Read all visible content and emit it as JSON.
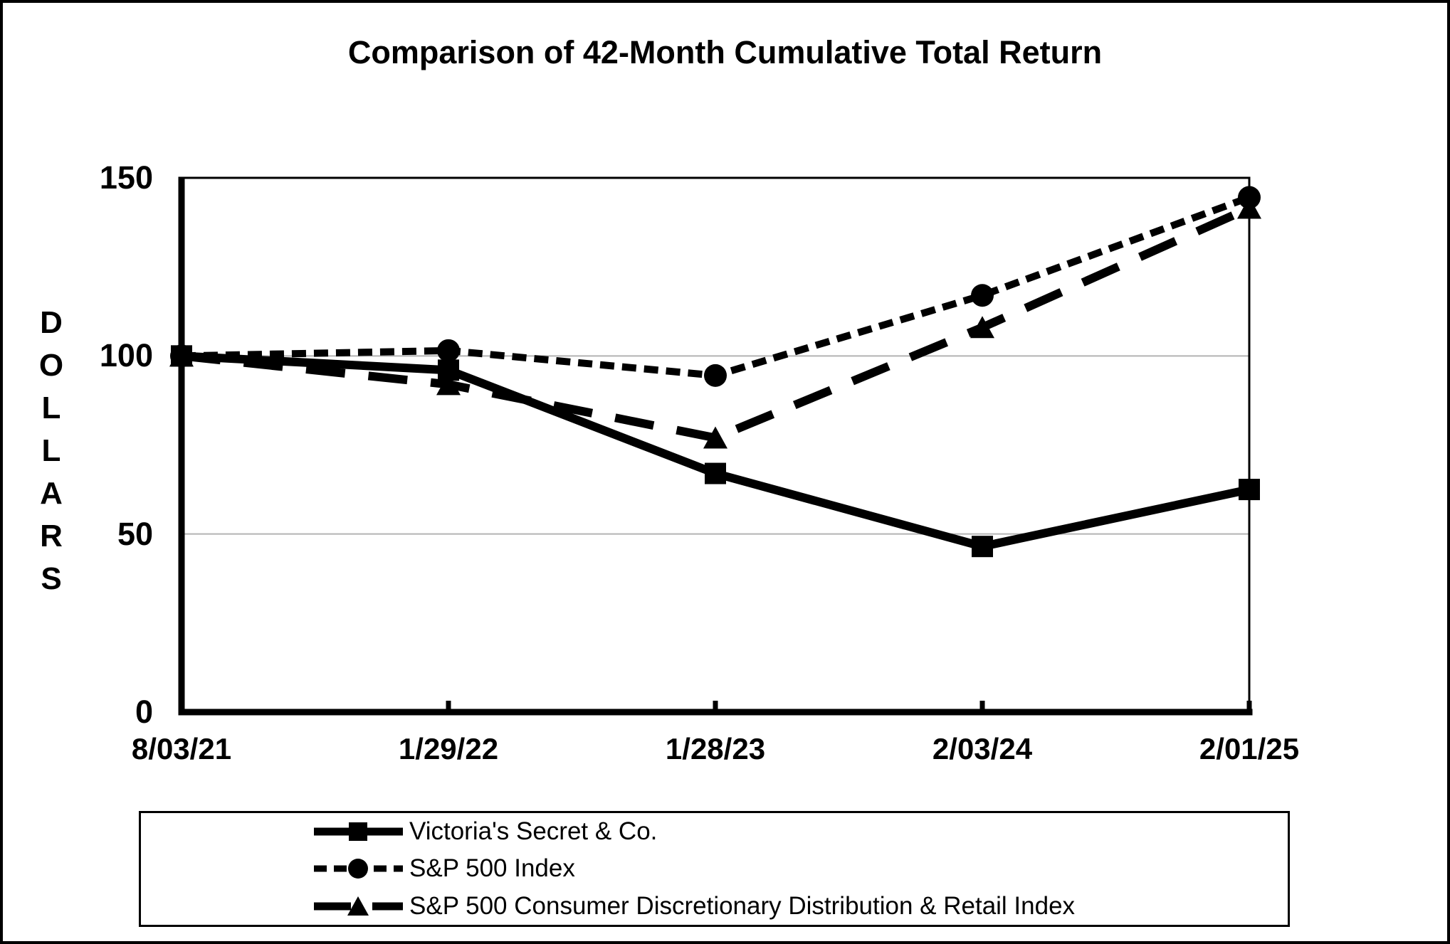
{
  "page": {
    "background": "#ffffff",
    "frame_border_color": "#000000"
  },
  "chart_data": {
    "type": "line",
    "title": "Comparison of 42-Month Cumulative Total Return",
    "ylabel": "DOLLARS",
    "xlabel": "",
    "ylim": [
      0,
      150
    ],
    "yticks": [
      "0",
      "50",
      "100",
      "150"
    ],
    "ytick_values": [
      0,
      50,
      100,
      150
    ],
    "gridlines_at": [
      50,
      100
    ],
    "grid": "horizontal-only",
    "categories": [
      "8/03/21",
      "1/29/22",
      "1/28/23",
      "2/03/24",
      "2/01/25"
    ],
    "series": [
      {
        "name": "Victoria's Secret & Co.",
        "marker": "square",
        "line_style": "solid",
        "values": [
          100,
          96,
          67,
          46.5,
          62.5
        ]
      },
      {
        "name": "S&P 500 Index",
        "marker": "circle",
        "line_style": "dotted",
        "values": [
          100,
          101.5,
          94.5,
          117,
          144.5
        ]
      },
      {
        "name": "S&P 500 Consumer Discretionary Distribution & Retail Index",
        "marker": "triangle",
        "line_style": "long-dash",
        "values": [
          100,
          92,
          77,
          108,
          141.5
        ]
      }
    ],
    "legend_position": "bottom",
    "colors": {
      "series": "#000000",
      "gridline": "#b3b3b3",
      "text": "#000000",
      "background": "#ffffff"
    }
  }
}
